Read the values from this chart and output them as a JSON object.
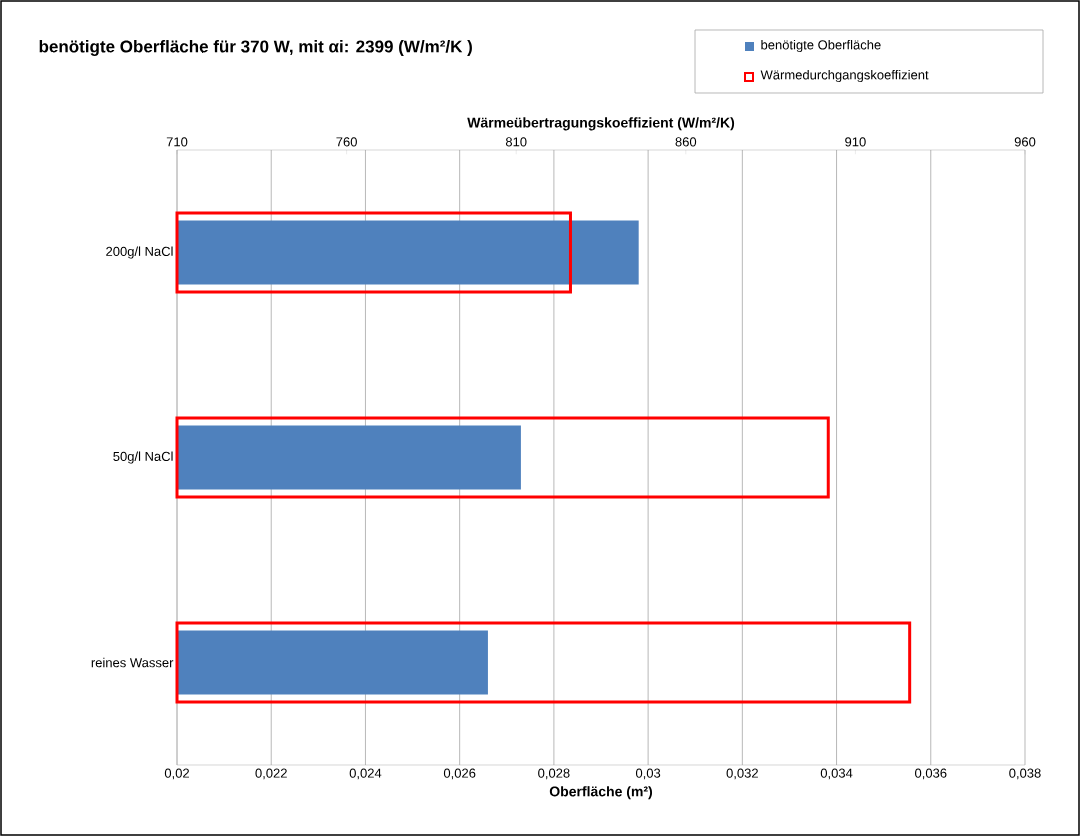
{
  "chart_data": {
    "type": "bar",
    "orientation": "horizontal",
    "title": "benötigte Oberfläche für 370 W, mit αi: 2399 (W/m²/K )",
    "xlabel": "Oberfläche (m²)",
    "x2label": "Wärmeübertragungskoeffizient (W/m²/K)",
    "categories": [
      "200g/l NaCl",
      "50g/l NaCl",
      "reines Wasser"
    ],
    "series": [
      {
        "name": "benötigte Oberfläche",
        "color": "#4f81bd",
        "values": [
          0.0298,
          0.0273,
          0.0266
        ]
      },
      {
        "name": "Wärmedurchgangskoeffizient",
        "color": "#ff0000",
        "axis": "x2",
        "values": [
          826,
          902,
          926
        ]
      }
    ],
    "xlim": [
      0.02,
      0.038
    ],
    "xticks": [
      {
        "value": 0.02,
        "label": "0,02"
      },
      {
        "value": 0.022,
        "label": "0,022"
      },
      {
        "value": 0.024,
        "label": "0,024"
      },
      {
        "value": 0.026,
        "label": "0,026"
      },
      {
        "value": 0.028,
        "label": "0,028"
      },
      {
        "value": 0.03,
        "label": "0,03"
      },
      {
        "value": 0.032,
        "label": "0,032"
      },
      {
        "value": 0.034,
        "label": "0,034"
      },
      {
        "value": 0.036,
        "label": "0,036"
      },
      {
        "value": 0.038,
        "label": "0,038"
      }
    ],
    "x2lim": [
      710,
      960
    ],
    "x2ticks": [
      710,
      760,
      810,
      860,
      910,
      960
    ],
    "grid": "x",
    "legend": "top right"
  }
}
